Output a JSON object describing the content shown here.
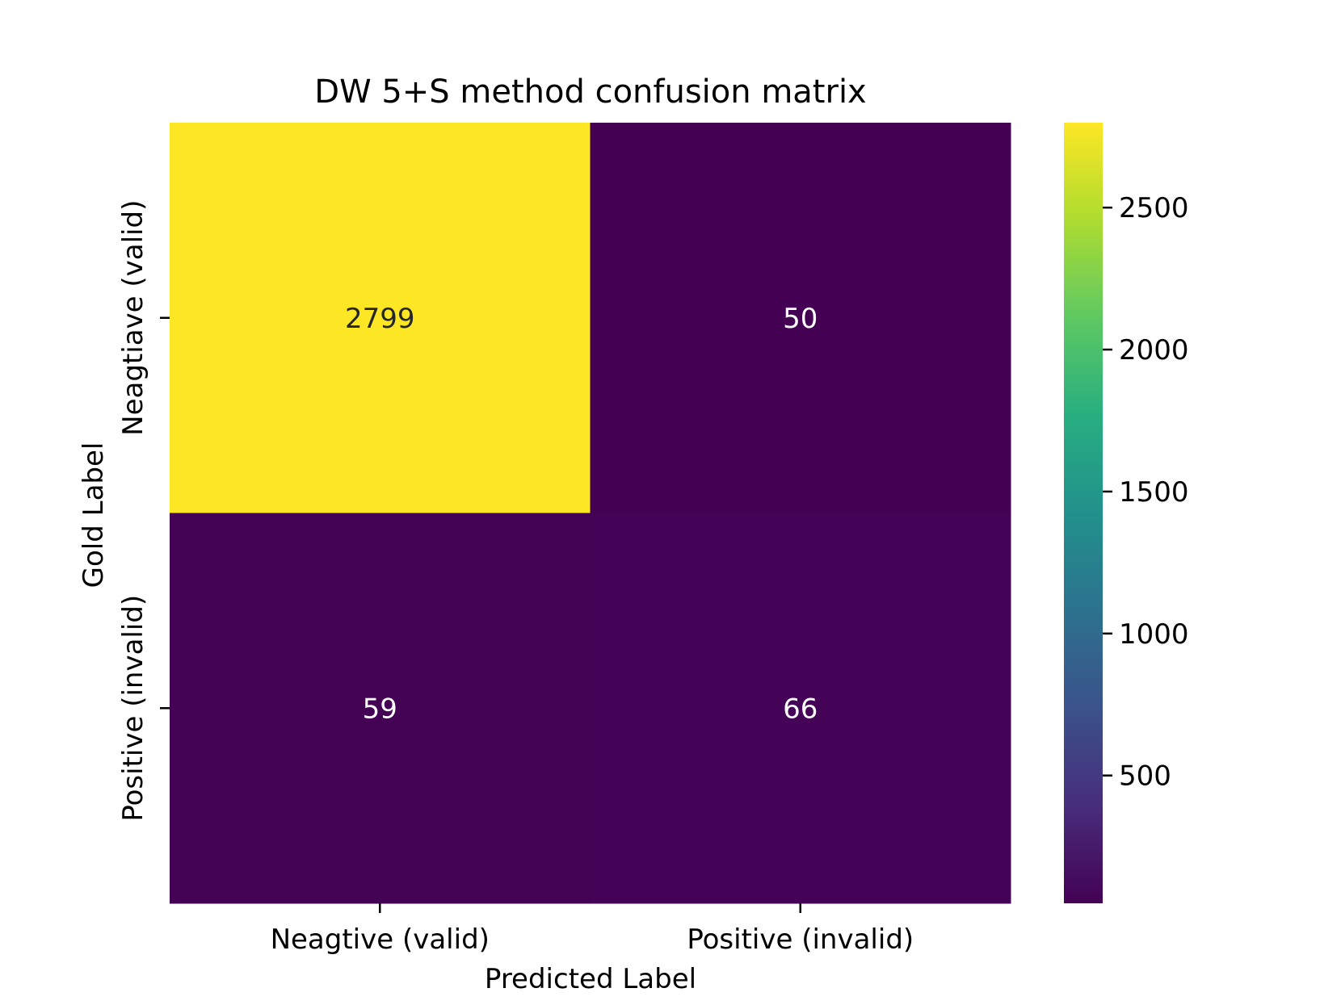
{
  "chart_data": {
    "type": "heatmap",
    "title": "DW 5+S method confusion matrix",
    "xlabel": "Predicted Label",
    "ylabel": "Gold Label",
    "x_categories": [
      "Neagtive (valid)",
      "Positive (invalid)"
    ],
    "y_categories": [
      "Neagtiave (valid)",
      "Positive (invalid)"
    ],
    "values": [
      [
        2799,
        50
      ],
      [
        59,
        66
      ]
    ],
    "colormap": "viridis",
    "colorbar": {
      "range": [
        50,
        2799
      ],
      "ticks": [
        500,
        1000,
        1500,
        2000,
        2500
      ]
    },
    "grid": false,
    "colors": {
      "low": "#440154",
      "high": "#fde725",
      "annotation_on_dark": "#ffffff",
      "annotation_on_light": "#262626"
    }
  }
}
